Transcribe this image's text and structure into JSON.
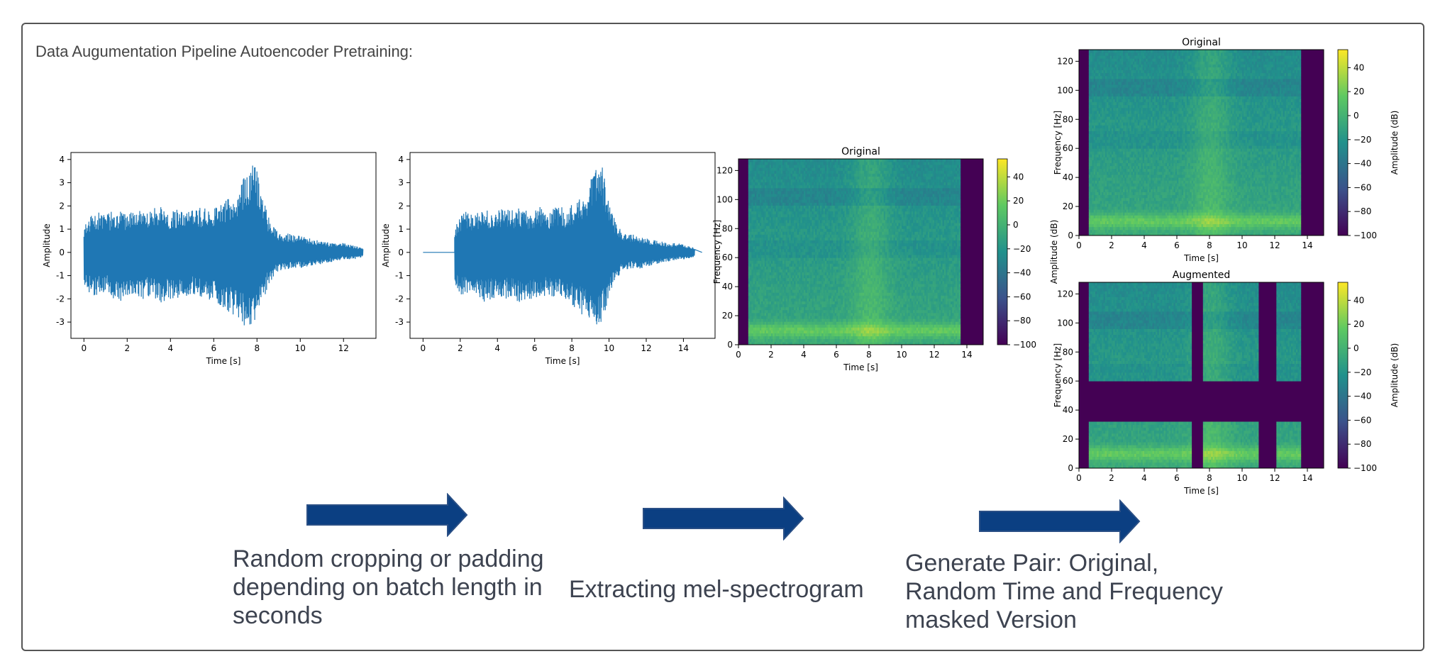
{
  "page_title": "Data Augumentation Pipeline Autoencoder Pretraining:",
  "captions": {
    "step1": "Random cropping or padding depending on batch length in seconds",
    "step2": "Extracting mel-spectrogram",
    "step3": "Generate Pair: Original, Random Time and Frequency masked Version"
  },
  "colors": {
    "arrow": "#0b3f82",
    "waveform": "#1f77b4",
    "frame": "#555555"
  },
  "icons": {
    "arrow": "right-arrow-icon"
  },
  "chart_data": [
    {
      "id": "waveform_original",
      "type": "line",
      "title": "",
      "xlabel": "Time [s]",
      "ylabel": "Amplitude",
      "xlim": [
        -0.6,
        13.5
      ],
      "ylim": [
        -3.7,
        4.3
      ],
      "xticks": [
        0,
        2,
        4,
        6,
        8,
        10,
        12
      ],
      "yticks": [
        -3,
        -2,
        -1,
        0,
        1,
        2,
        3,
        4
      ],
      "signal_start": 0,
      "signal_end": 12.9,
      "envelope": {
        "t": [
          0,
          0.5,
          1,
          1.5,
          2,
          2.5,
          3,
          3.5,
          4,
          4.5,
          5,
          5.5,
          6,
          6.5,
          7,
          7.5,
          7.8,
          8,
          8.5,
          9,
          9.5,
          10,
          10.5,
          11,
          11.5,
          12,
          12.5,
          12.9
        ],
        "upper": [
          1.1,
          1.8,
          1.6,
          1.9,
          1.7,
          2.0,
          1.8,
          2.0,
          1.7,
          2.0,
          1.8,
          2.0,
          1.9,
          2.3,
          2.6,
          3.5,
          3.9,
          3.6,
          1.6,
          0.9,
          0.8,
          0.7,
          0.6,
          0.5,
          0.4,
          0.4,
          0.3,
          0.2
        ],
        "lower": [
          -1.6,
          -1.9,
          -1.7,
          -2.2,
          -2.0,
          -2.1,
          -1.9,
          -2.2,
          -2.0,
          -2.1,
          -1.8,
          -2.0,
          -2.1,
          -2.4,
          -2.8,
          -3.3,
          -3.2,
          -2.8,
          -1.5,
          -0.8,
          -0.7,
          -0.7,
          -0.6,
          -0.5,
          -0.4,
          -0.3,
          -0.3,
          -0.2
        ]
      }
    },
    {
      "id": "waveform_padded",
      "type": "line",
      "title": "",
      "xlabel": "Time [s]",
      "ylabel": "Amplitude",
      "xlim": [
        -0.7,
        15.7
      ],
      "ylim": [
        -3.7,
        4.3
      ],
      "xticks": [
        0,
        2,
        4,
        6,
        8,
        10,
        12,
        14
      ],
      "yticks": [
        -3,
        -2,
        -1,
        0,
        1,
        2,
        3,
        4
      ],
      "signal_start": 1.7,
      "signal_end": 14.6,
      "padding_end": 15.0,
      "envelope_ref": "waveform_original"
    },
    {
      "id": "spectrogram_step2",
      "type": "heatmap",
      "title": "Original",
      "xlabel": "Time [s]",
      "ylabel": "Frequency [Hz]",
      "colorbar_label": "Amplitude (dB)",
      "xlim": [
        0,
        15
      ],
      "ylim": [
        0,
        128
      ],
      "xticks": [
        0,
        2,
        4,
        6,
        8,
        10,
        12,
        14
      ],
      "yticks": [
        0,
        20,
        40,
        60,
        80,
        100,
        120
      ],
      "colorbar_ticks": [
        "40",
        "20",
        "0",
        "−20",
        "−40",
        "−60",
        "−80",
        "−100"
      ],
      "colorbar_range": [
        -100,
        55
      ],
      "colormap": "viridis",
      "content_start": 0.6,
      "content_end": 13.6,
      "masks": []
    },
    {
      "id": "spectrogram_original",
      "type": "heatmap",
      "title": "Original",
      "xlabel": "Time [s]",
      "ylabel": "Frequency [Hz]",
      "colorbar_label": "Amplitude (dB)",
      "xlim": [
        0,
        15
      ],
      "ylim": [
        0,
        128
      ],
      "xticks": [
        0,
        2,
        4,
        6,
        8,
        10,
        12,
        14
      ],
      "yticks": [
        0,
        20,
        40,
        60,
        80,
        100,
        120
      ],
      "colorbar_ticks": [
        "40",
        "20",
        "0",
        "−20",
        "−40",
        "−60",
        "−80",
        "−100"
      ],
      "colorbar_range": [
        -100,
        55
      ],
      "colormap": "viridis",
      "content_start": 0.6,
      "content_end": 13.6,
      "masks": []
    },
    {
      "id": "spectrogram_augmented",
      "type": "heatmap",
      "title": "Augmented",
      "xlabel": "Time [s]",
      "ylabel": "Frequency [Hz]",
      "colorbar_label": "Amplitude (dB)",
      "xlim": [
        0,
        15
      ],
      "ylim": [
        0,
        128
      ],
      "xticks": [
        0,
        2,
        4,
        6,
        8,
        10,
        12,
        14
      ],
      "yticks": [
        0,
        20,
        40,
        60,
        80,
        100,
        120
      ],
      "colorbar_ticks": [
        "40",
        "20",
        "0",
        "−20",
        "−40",
        "−60",
        "−80",
        "−100"
      ],
      "colorbar_range": [
        -100,
        55
      ],
      "colormap": "viridis",
      "content_start": 0.6,
      "content_end": 13.6,
      "masks": [
        {
          "axis": "time",
          "from": 6.9,
          "to": 7.6
        },
        {
          "axis": "time",
          "from": 11.0,
          "to": 12.1
        },
        {
          "axis": "freq",
          "from": 32,
          "to": 59
        }
      ]
    }
  ]
}
